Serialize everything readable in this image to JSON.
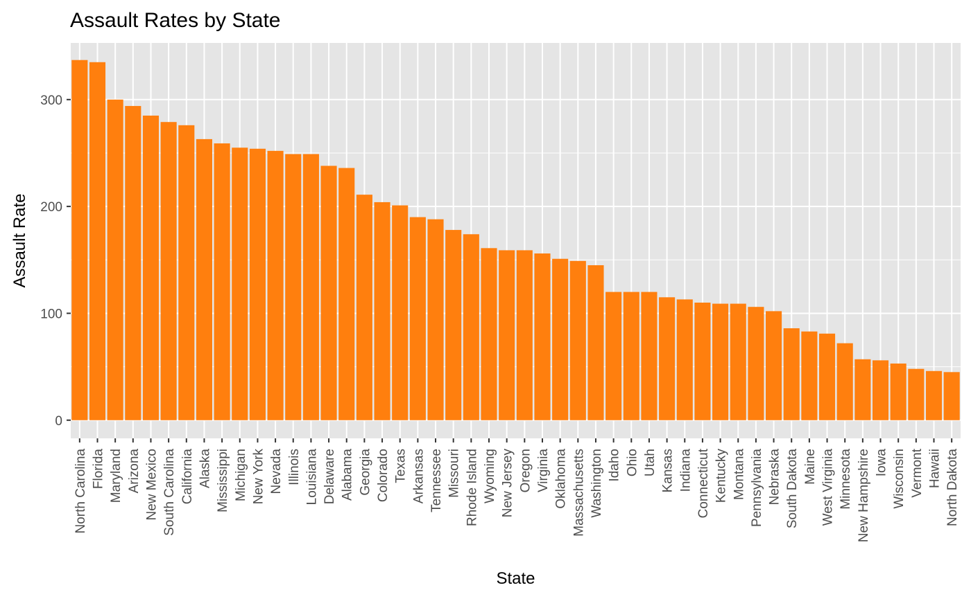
{
  "chart_data": {
    "type": "bar",
    "title": "Assault Rates by State",
    "xlabel": "State",
    "ylabel": "Assault Rate",
    "ylim": [
      -17,
      353
    ],
    "yticks": [
      0,
      100,
      200,
      300
    ],
    "ytick_labels": [
      "0",
      "100",
      "200",
      "300"
    ],
    "grid": true,
    "bar_color": "#FF7F0E",
    "panel_color": "#E5E5E5",
    "grid_color": "#FFFFFF",
    "categories": [
      "North Carolina",
      "Florida",
      "Maryland",
      "Arizona",
      "New Mexico",
      "South Carolina",
      "California",
      "Alaska",
      "Mississippi",
      "Michigan",
      "New York",
      "Nevada",
      "Illinois",
      "Louisiana",
      "Delaware",
      "Alabama",
      "Georgia",
      "Colorado",
      "Texas",
      "Arkansas",
      "Tennessee",
      "Missouri",
      "Rhode Island",
      "Wyoming",
      "New Jersey",
      "Oregon",
      "Virginia",
      "Oklahoma",
      "Massachusetts",
      "Washington",
      "Idaho",
      "Ohio",
      "Utah",
      "Kansas",
      "Indiana",
      "Connecticut",
      "Kentucky",
      "Montana",
      "Pennsylvania",
      "Nebraska",
      "South Dakota",
      "Maine",
      "West Virginia",
      "Minnesota",
      "New Hampshire",
      "Iowa",
      "Wisconsin",
      "Vermont",
      "Hawaii",
      "North Dakota"
    ],
    "values": [
      337,
      335,
      300,
      294,
      285,
      279,
      276,
      263,
      259,
      255,
      254,
      252,
      249,
      249,
      238,
      236,
      211,
      204,
      201,
      190,
      188,
      178,
      174,
      161,
      159,
      159,
      156,
      151,
      149,
      145,
      120,
      120,
      120,
      115,
      113,
      110,
      109,
      109,
      106,
      102,
      86,
      83,
      81,
      72,
      57,
      56,
      53,
      48,
      46,
      45
    ]
  }
}
